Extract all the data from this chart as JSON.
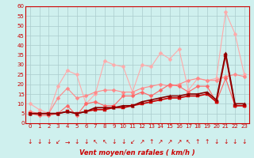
{
  "x": [
    0,
    1,
    2,
    3,
    4,
    5,
    6,
    7,
    8,
    9,
    10,
    11,
    12,
    13,
    14,
    15,
    16,
    17,
    18,
    19,
    20,
    21,
    22,
    23
  ],
  "series": [
    {
      "color": "#ffaaaa",
      "marker": "D",
      "markersize": 2.5,
      "linewidth": 0.8,
      "values": [
        10,
        7,
        5,
        19,
        27,
        25,
        10,
        15,
        32,
        30,
        29,
        16,
        30,
        29,
        36,
        33,
        38,
        17,
        23,
        22,
        23,
        57,
        46,
        25
      ]
    },
    {
      "color": "#ff8888",
      "marker": "D",
      "markersize": 2.5,
      "linewidth": 0.8,
      "values": [
        6,
        5,
        5,
        13,
        18,
        13,
        14,
        16,
        17,
        17,
        16,
        16,
        18,
        19,
        20,
        19,
        20,
        22,
        23,
        22,
        22,
        24,
        25,
        24
      ]
    },
    {
      "color": "#ff6666",
      "marker": "D",
      "markersize": 2.5,
      "linewidth": 0.8,
      "values": [
        5,
        4,
        4,
        5,
        9,
        4,
        10,
        11,
        9,
        9,
        14,
        14,
        16,
        14,
        17,
        20,
        19,
        16,
        19,
        19,
        11,
        23,
        9,
        9
      ]
    },
    {
      "color": "#cc0000",
      "marker": "s",
      "markersize": 2.5,
      "linewidth": 1.2,
      "values": [
        5,
        5,
        5,
        5,
        6,
        5,
        6,
        7,
        7,
        8,
        8,
        9,
        10,
        11,
        12,
        13,
        13,
        14,
        14,
        15,
        11,
        35,
        9,
        9
      ]
    },
    {
      "color": "#880000",
      "marker": "^",
      "markersize": 2.5,
      "linewidth": 1.2,
      "values": [
        5,
        5,
        5,
        5,
        6,
        5,
        6,
        8,
        8,
        8,
        9,
        9,
        11,
        12,
        13,
        14,
        14,
        15,
        15,
        16,
        12,
        36,
        10,
        10
      ]
    }
  ],
  "wind_arrows": [
    "↓",
    "↓",
    "↓",
    "↙",
    "→",
    "↓",
    "↓",
    "↖",
    "↖",
    "↓",
    "↓",
    "↙",
    "↗",
    "↑",
    "↗",
    "↗",
    "↗",
    "↖",
    "↑",
    "↑",
    "↓",
    "↓",
    "↓",
    "↓"
  ],
  "xlabel": "Vent moyen/en rafales ( km/h )",
  "ylim": [
    0,
    60
  ],
  "yticks": [
    0,
    5,
    10,
    15,
    20,
    25,
    30,
    35,
    40,
    45,
    50,
    55,
    60
  ],
  "bg_color": "#cff0ee",
  "grid_color": "#aacccc",
  "xlabel_color": "#cc0000",
  "tick_color": "#cc0000",
  "tick_fontsize": 5,
  "xlabel_fontsize": 6
}
